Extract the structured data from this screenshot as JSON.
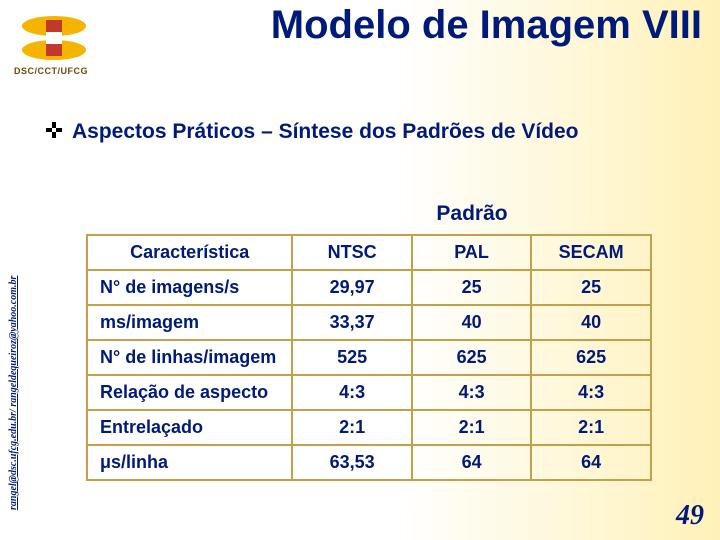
{
  "logo": {
    "label": "DSC/CCT/UFCG",
    "colors": {
      "yellow": "#f4b400",
      "red": "#c0392b"
    }
  },
  "title": "Modelo de Imagem VIII",
  "subtitle": "Aspectos Práticos – Síntese dos Padrões de Vídeo",
  "side_email": "rangel@dsc.ufcg.edu.br/ rangeldequeiroz@yahoo.com.br",
  "slide_number": "49",
  "table": {
    "group_header": "Padrão",
    "columns": [
      "Característica",
      "NTSC",
      "PAL",
      "SECAM"
    ],
    "rows": [
      {
        "label": "N° de imagens/s",
        "ntsc": "29,97",
        "pal": "25",
        "secam": "25"
      },
      {
        "label": "ms/imagem",
        "ntsc": "33,37",
        "pal": "40",
        "secam": "40"
      },
      {
        "label": "N° de linhas/imagem",
        "ntsc": "525",
        "pal": "625",
        "secam": "625"
      },
      {
        "label": "Relação de aspecto",
        "ntsc": "4:3",
        "pal": "4:3",
        "secam": "4:3"
      },
      {
        "label": "Entrelaçado",
        "ntsc": "2:1",
        "pal": "2:1",
        "secam": "2:1"
      },
      {
        "label": "μs/linha",
        "ntsc": "63,53",
        "pal": "64",
        "secam": "64"
      }
    ]
  },
  "colors": {
    "heading": "#001a7a",
    "table_border": "#c2a14a",
    "bg_gradient_end": "#fff1b8"
  }
}
